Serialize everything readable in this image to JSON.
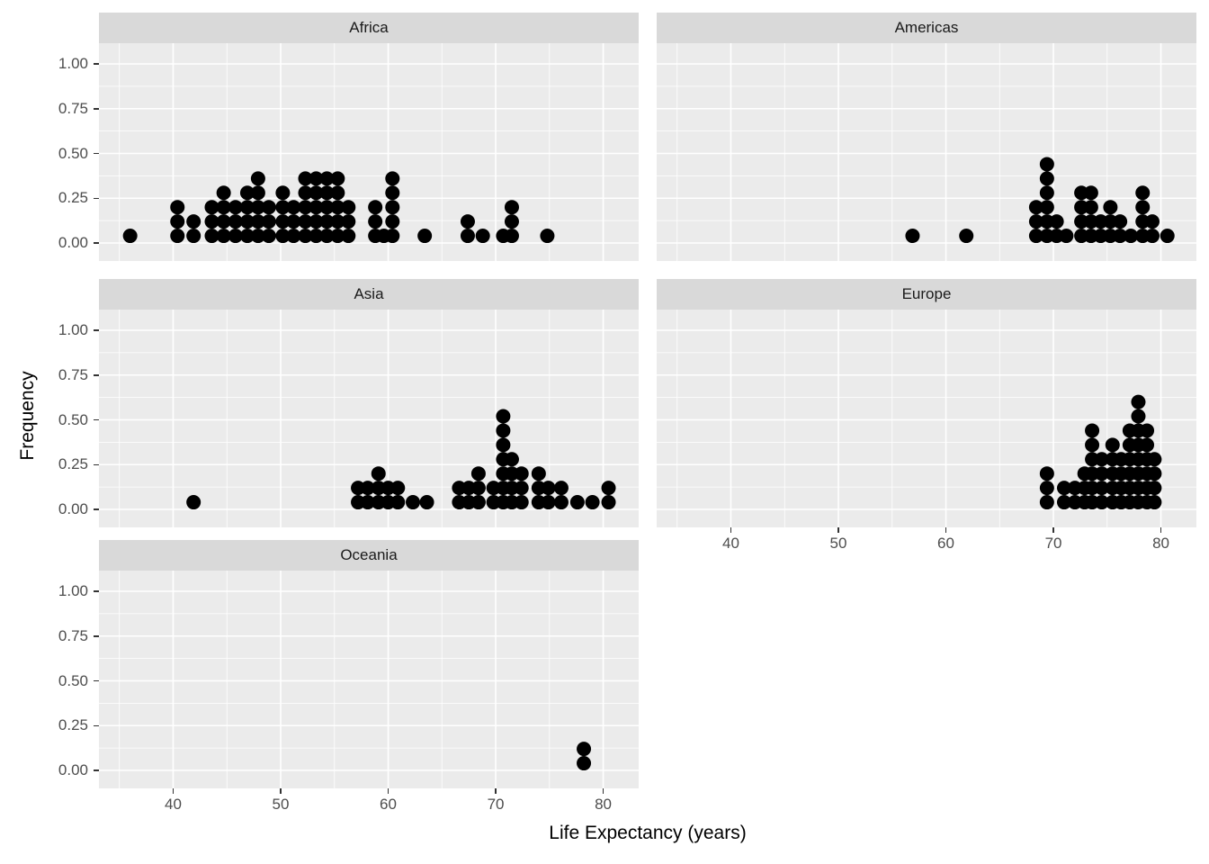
{
  "chart_data": {
    "type": "dotplot",
    "title": "",
    "xlabel": "Life Expectancy (years)",
    "ylabel": "Frequency",
    "facet_variable": "continent",
    "grid": true,
    "legend_position": "none",
    "x_domain": [
      33.1,
      83.3
    ],
    "y_domain": [
      -0.1,
      1.115
    ],
    "x_ticks": [
      40,
      50,
      60,
      70,
      80
    ],
    "x_tick_labels": [
      "40",
      "50",
      "60",
      "70",
      "80"
    ],
    "y_ticks": [
      1.0,
      0.75,
      0.5,
      0.25,
      0.0
    ],
    "y_tick_labels": [
      "1.00",
      "0.75",
      "0.50",
      "0.25",
      "0.00"
    ],
    "dot_diameter_frequency_units": 0.08,
    "facets": [
      {
        "name": "Africa",
        "stacks": [
          [
            36.0,
            1
          ],
          [
            40.4,
            3
          ],
          [
            41.9,
            2
          ],
          [
            43.6,
            3
          ],
          [
            44.7,
            4
          ],
          [
            45.8,
            3
          ],
          [
            46.9,
            4
          ],
          [
            47.9,
            5
          ],
          [
            48.9,
            3
          ],
          [
            50.2,
            4
          ],
          [
            51.2,
            3
          ],
          [
            52.3,
            5
          ],
          [
            53.3,
            5
          ],
          [
            54.3,
            5
          ],
          [
            55.3,
            5
          ],
          [
            56.3,
            3
          ],
          [
            58.8,
            3
          ],
          [
            59.6,
            1
          ],
          [
            60.4,
            5
          ],
          [
            63.4,
            1
          ],
          [
            67.4,
            2
          ],
          [
            68.8,
            1
          ],
          [
            70.7,
            1
          ],
          [
            71.5,
            3
          ],
          [
            74.8,
            1
          ]
        ]
      },
      {
        "name": "Americas",
        "stacks": [
          [
            56.9,
            1
          ],
          [
            61.9,
            1
          ],
          [
            68.4,
            3
          ],
          [
            69.4,
            6
          ],
          [
            70.3,
            2
          ],
          [
            71.2,
            1
          ],
          [
            72.6,
            4
          ],
          [
            73.5,
            4
          ],
          [
            74.4,
            2
          ],
          [
            75.3,
            3
          ],
          [
            76.2,
            2
          ],
          [
            77.2,
            1
          ],
          [
            78.3,
            4
          ],
          [
            79.2,
            2
          ],
          [
            80.6,
            1
          ]
        ]
      },
      {
        "name": "Asia",
        "stacks": [
          [
            41.9,
            1
          ],
          [
            57.2,
            2
          ],
          [
            58.1,
            2
          ],
          [
            59.1,
            3
          ],
          [
            60.0,
            2
          ],
          [
            60.9,
            2
          ],
          [
            62.3,
            1
          ],
          [
            63.6,
            1
          ],
          [
            66.6,
            2
          ],
          [
            67.5,
            2
          ],
          [
            68.4,
            3
          ],
          [
            69.8,
            2
          ],
          [
            70.7,
            7
          ],
          [
            71.5,
            4
          ],
          [
            72.4,
            3
          ],
          [
            74.0,
            3
          ],
          [
            74.9,
            2
          ],
          [
            76.1,
            2
          ],
          [
            77.6,
            1
          ],
          [
            79.0,
            1
          ],
          [
            80.5,
            2
          ]
        ]
      },
      {
        "name": "Europe",
        "stacks": [
          [
            69.4,
            3
          ],
          [
            71.0,
            2
          ],
          [
            72.0,
            2
          ],
          [
            72.9,
            3
          ],
          [
            73.6,
            6
          ],
          [
            74.5,
            4
          ],
          [
            75.5,
            5
          ],
          [
            76.3,
            4
          ],
          [
            77.1,
            6
          ],
          [
            77.9,
            8
          ],
          [
            78.7,
            6
          ],
          [
            79.4,
            4
          ]
        ]
      },
      {
        "name": "Oceania",
        "stacks": [
          [
            78.2,
            2
          ]
        ]
      }
    ],
    "style": {
      "panel_bg": "#EBEBEB",
      "strip_bg": "#D9D9D9",
      "grid": "#FFFFFF",
      "dot": "#000000",
      "tick": "#333333",
      "tick_text": "#4D4D4D",
      "title_text": "#000000",
      "page_bg": "#FFFFFF"
    }
  }
}
